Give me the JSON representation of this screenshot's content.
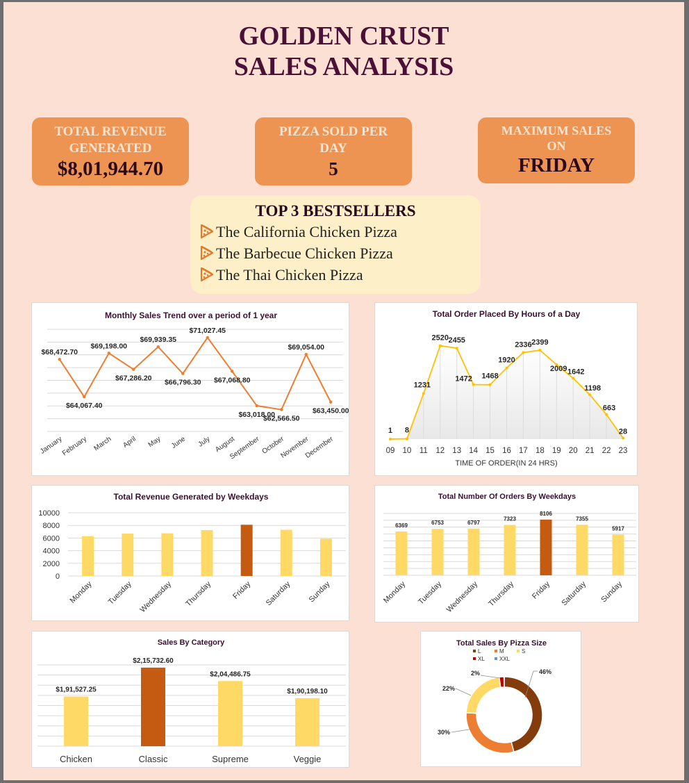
{
  "title_line1": "GOLDEN CRUST",
  "title_line2": "SALES ANALYSIS",
  "kpis": {
    "revenue": {
      "label1": "TOTAL REVENUE",
      "label2": "GENERATED",
      "value": "$8,01,944.70"
    },
    "pizza_per_day": {
      "label1": "PIZZA SOLD PER",
      "label2": "DAY",
      "value": "5"
    },
    "max_sales": {
      "label1": "MAXIMUM SALES",
      "label2": "ON",
      "value": "FRIDAY"
    }
  },
  "bestsellers": {
    "heading": "TOP 3 BESTSELLERS",
    "items": [
      "The California Chicken Pizza",
      "The Barbecue Chicken Pizza",
      "The Thai Chicken Pizza"
    ],
    "icon": "pizza-slice-icon"
  },
  "colors": {
    "line": "#ed7d31",
    "yellow": "#ffd966",
    "highlight": "#c55a11",
    "hour_line": "#ffc000",
    "title": "#4a1138"
  },
  "chart_data": [
    {
      "id": "monthly",
      "type": "line",
      "title": "Monthly Sales Trend over a period of 1 year",
      "categories": [
        "January",
        "February",
        "March",
        "April",
        "May",
        "June",
        "July",
        "August",
        "September",
        "October",
        "November",
        "December"
      ],
      "values": [
        68472.7,
        64067.4,
        69198.0,
        67286.2,
        69939.35,
        66796.3,
        71027.45,
        67068.8,
        63018.0,
        62566.5,
        69054.0,
        63450.0
      ],
      "labels": [
        "$68,472.70",
        "$64,067.40",
        "$69,198.00",
        "$67,286.20",
        "$69,939.35",
        "$66,796.30",
        "$71,027.45",
        "$67,068.80",
        "$63,018.00",
        "$62,566.50",
        "$69,054.00",
        "$63,450.00"
      ],
      "grid": true
    },
    {
      "id": "hours",
      "type": "area",
      "title": "Total Order Placed By Hours of a Day",
      "xlabel": "TIME OF ORDER(IN 24 HRS)",
      "categories": [
        "09",
        "10",
        "11",
        "12",
        "13",
        "14",
        "15",
        "16",
        "17",
        "18",
        "19",
        "20",
        "21",
        "22",
        "23"
      ],
      "values": [
        1,
        8,
        1231,
        2520,
        2455,
        1472,
        1468,
        1920,
        2336,
        2399,
        2009,
        1642,
        1198,
        663,
        28
      ]
    },
    {
      "id": "weekday_revenue",
      "type": "bar",
      "title": "Total Revenue Generated by Weekdays",
      "categories": [
        "Monday",
        "Tuesday",
        "Wednesday",
        "Thursday",
        "Friday",
        "Saturday",
        "Sunday"
      ],
      "values": [
        6300,
        6700,
        6750,
        7250,
        8100,
        7300,
        5900
      ],
      "yticks": [
        "0",
        "2000",
        "4000",
        "6000",
        "8000",
        "10000"
      ],
      "ylim": [
        0,
        10000
      ],
      "highlight": "Friday"
    },
    {
      "id": "weekday_orders",
      "type": "bar",
      "title": "Total Number Of Orders By Weekdays",
      "categories": [
        "Monday",
        "Tuesday",
        "Wednesday",
        "Thursday",
        "Friday",
        "Saturday",
        "Sunday"
      ],
      "values": [
        6369,
        6753,
        6797,
        7323,
        8106,
        7355,
        5917
      ],
      "highlight": "Friday"
    },
    {
      "id": "category",
      "type": "bar",
      "title": "Sales By Category",
      "categories": [
        "Chicken",
        "Classic",
        "Supreme",
        "Veggie"
      ],
      "values": [
        191527.25,
        215732.6,
        204486.75,
        190198.1
      ],
      "labels": [
        "$1,91,527.25",
        "$2,15,732.60",
        "$2,04,486.75",
        "$1,90,198.10"
      ],
      "highlight": "Classic"
    },
    {
      "id": "size",
      "type": "pie",
      "title": "Total Sales By Pizza Size",
      "legend": [
        {
          "name": "L",
          "color": "#843c0c"
        },
        {
          "name": "M",
          "color": "#ed7d31"
        },
        {
          "name": "S",
          "color": "#ffd966"
        },
        {
          "name": "XL",
          "color": "#c00000"
        },
        {
          "name": "XXL",
          "color": "#5b9bd5"
        }
      ],
      "slices": [
        {
          "name": "L",
          "value": 46,
          "label": "46%"
        },
        {
          "name": "M",
          "value": 30,
          "label": "30%"
        },
        {
          "name": "S",
          "value": 22,
          "label": "22%"
        },
        {
          "name": "XL",
          "value": 2,
          "label": "2%"
        },
        {
          "name": "XXL",
          "value": 0.1,
          "label": ""
        }
      ]
    }
  ]
}
